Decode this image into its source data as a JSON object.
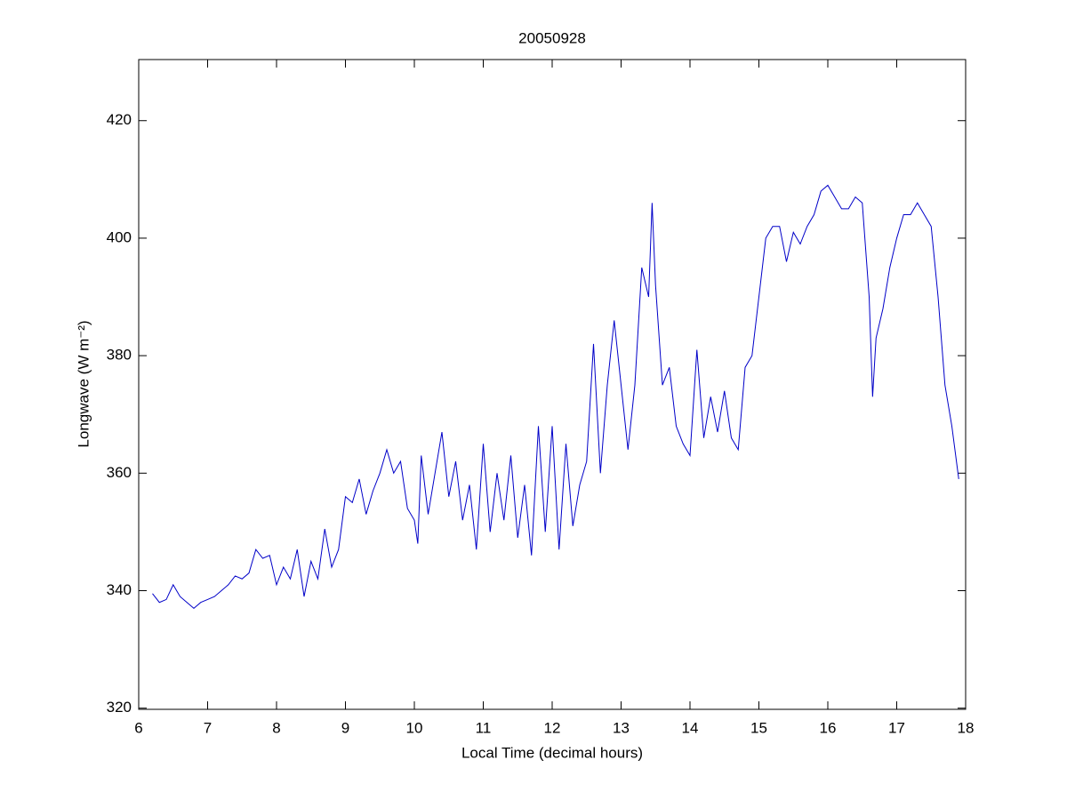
{
  "chart_data": {
    "type": "line",
    "title": "20050928",
    "xlabel": "Local Time (decimal hours)",
    "ylabel": "Longwave (W m⁻²)",
    "xlim": [
      6,
      18
    ],
    "xticks": [
      6,
      7,
      8,
      9,
      10,
      11,
      12,
      13,
      14,
      15,
      16,
      17,
      18
    ],
    "ylim": [
      319.8,
      430.4
    ],
    "yticks": [
      320,
      340,
      360,
      380,
      400,
      420
    ],
    "color": "#0000c8",
    "x": [
      6.2,
      6.3,
      6.4,
      6.5,
      6.6,
      6.7,
      6.8,
      6.9,
      7.0,
      7.1,
      7.2,
      7.3,
      7.4,
      7.5,
      7.6,
      7.7,
      7.8,
      7.9,
      8.0,
      8.1,
      8.2,
      8.3,
      8.4,
      8.5,
      8.6,
      8.7,
      8.8,
      8.9,
      9.0,
      9.1,
      9.2,
      9.3,
      9.4,
      9.5,
      9.6,
      9.7,
      9.8,
      9.9,
      10.0,
      10.05,
      10.1,
      10.2,
      10.3,
      10.4,
      10.5,
      10.6,
      10.7,
      10.8,
      10.9,
      11.0,
      11.1,
      11.2,
      11.3,
      11.4,
      11.5,
      11.6,
      11.7,
      11.8,
      11.9,
      12.0,
      12.1,
      12.2,
      12.3,
      12.4,
      12.5,
      12.6,
      12.7,
      12.8,
      12.9,
      13.0,
      13.1,
      13.2,
      13.3,
      13.4,
      13.45,
      13.5,
      13.6,
      13.7,
      13.8,
      13.9,
      14.0,
      14.1,
      14.2,
      14.3,
      14.4,
      14.5,
      14.6,
      14.7,
      14.8,
      14.9,
      15.0,
      15.1,
      15.2,
      15.3,
      15.4,
      15.5,
      15.6,
      15.7,
      15.8,
      15.9,
      16.0,
      16.1,
      16.2,
      16.3,
      16.4,
      16.5,
      16.6,
      16.65,
      16.7,
      16.8,
      16.9,
      17.0,
      17.1,
      17.2,
      17.3,
      17.4,
      17.5,
      17.6,
      17.7,
      17.8,
      17.9
    ],
    "values": [
      339.5,
      338,
      338.5,
      341,
      339,
      338,
      337,
      338,
      338.5,
      339,
      340,
      341,
      342.5,
      342,
      343,
      347,
      345.5,
      346,
      341,
      344,
      342,
      347,
      339,
      345,
      342,
      350.5,
      344,
      347,
      356,
      355,
      359,
      353,
      357,
      360,
      364,
      360,
      362,
      354,
      352,
      348,
      363,
      353,
      360,
      367,
      356,
      362,
      352,
      358,
      347,
      365,
      350,
      360,
      352,
      363,
      349,
      358,
      346,
      368,
      350,
      368,
      347,
      365,
      351,
      358,
      362,
      382,
      360,
      375,
      386,
      375,
      364,
      375,
      395,
      390,
      406,
      392,
      375,
      378,
      368,
      365,
      363,
      381,
      366,
      373,
      367,
      374,
      366,
      364,
      378,
      380,
      390,
      400,
      402,
      402,
      396,
      401,
      399,
      402,
      404,
      408,
      409,
      407,
      405,
      405,
      407,
      406,
      390,
      373,
      383,
      388,
      395,
      400,
      404,
      404,
      406,
      404,
      402,
      390,
      375,
      368,
      359
    ]
  }
}
